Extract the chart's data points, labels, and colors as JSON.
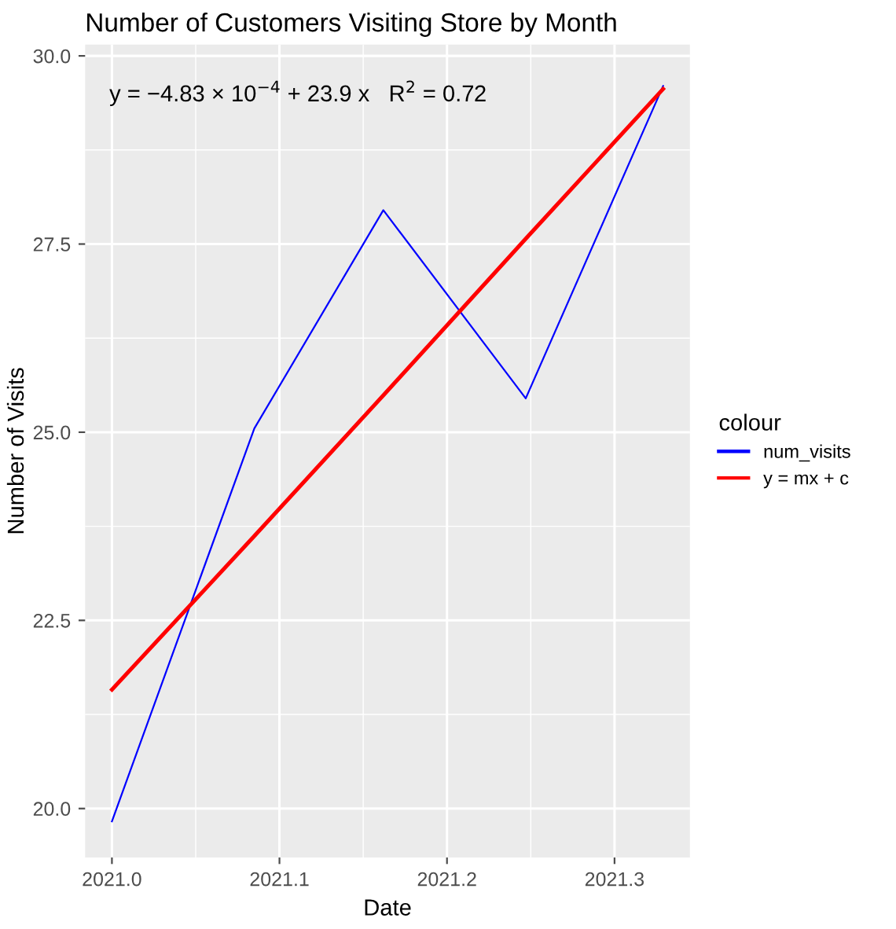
{
  "chart_data": {
    "type": "line",
    "title": "Number of Customers Visiting Store by Month",
    "xlabel": "Date",
    "ylabel": "Number of Visits",
    "legend_title": "colour",
    "x": [
      2021.0,
      2021.085,
      2021.162,
      2021.247,
      2021.329
    ],
    "series": [
      {
        "name": "num_visits",
        "color": "#0000ff",
        "values": [
          19.83,
          25.05,
          27.95,
          25.45,
          29.6
        ]
      },
      {
        "name": "y = mx + c",
        "color": "#ff0000",
        "values": [
          21.58,
          23.62,
          25.49,
          27.57,
          29.56
        ]
      }
    ],
    "annotations": [
      "y = −4.83 × 10$^{−4}$ + 23.9 x   R$^{2}$ = 0.72"
    ],
    "xlim": [
      2020.984,
      2021.345
    ],
    "ylim": [
      19.35,
      30.15
    ],
    "xticks": [
      {
        "value": 2021.0,
        "label": "2021.0"
      },
      {
        "value": 2021.1,
        "label": "2021.1"
      },
      {
        "value": 2021.2,
        "label": "2021.2"
      },
      {
        "value": 2021.3,
        "label": "2021.3"
      }
    ],
    "yticks": [
      {
        "value": 20.0,
        "label": "20.0"
      },
      {
        "value": 22.5,
        "label": "22.5"
      },
      {
        "value": 25.0,
        "label": "25.0"
      },
      {
        "value": 27.5,
        "label": "27.5"
      },
      {
        "value": 30.0,
        "label": "30.0"
      }
    ],
    "grid": true,
    "legend": "right",
    "marker": "none",
    "line_style": "solid"
  }
}
